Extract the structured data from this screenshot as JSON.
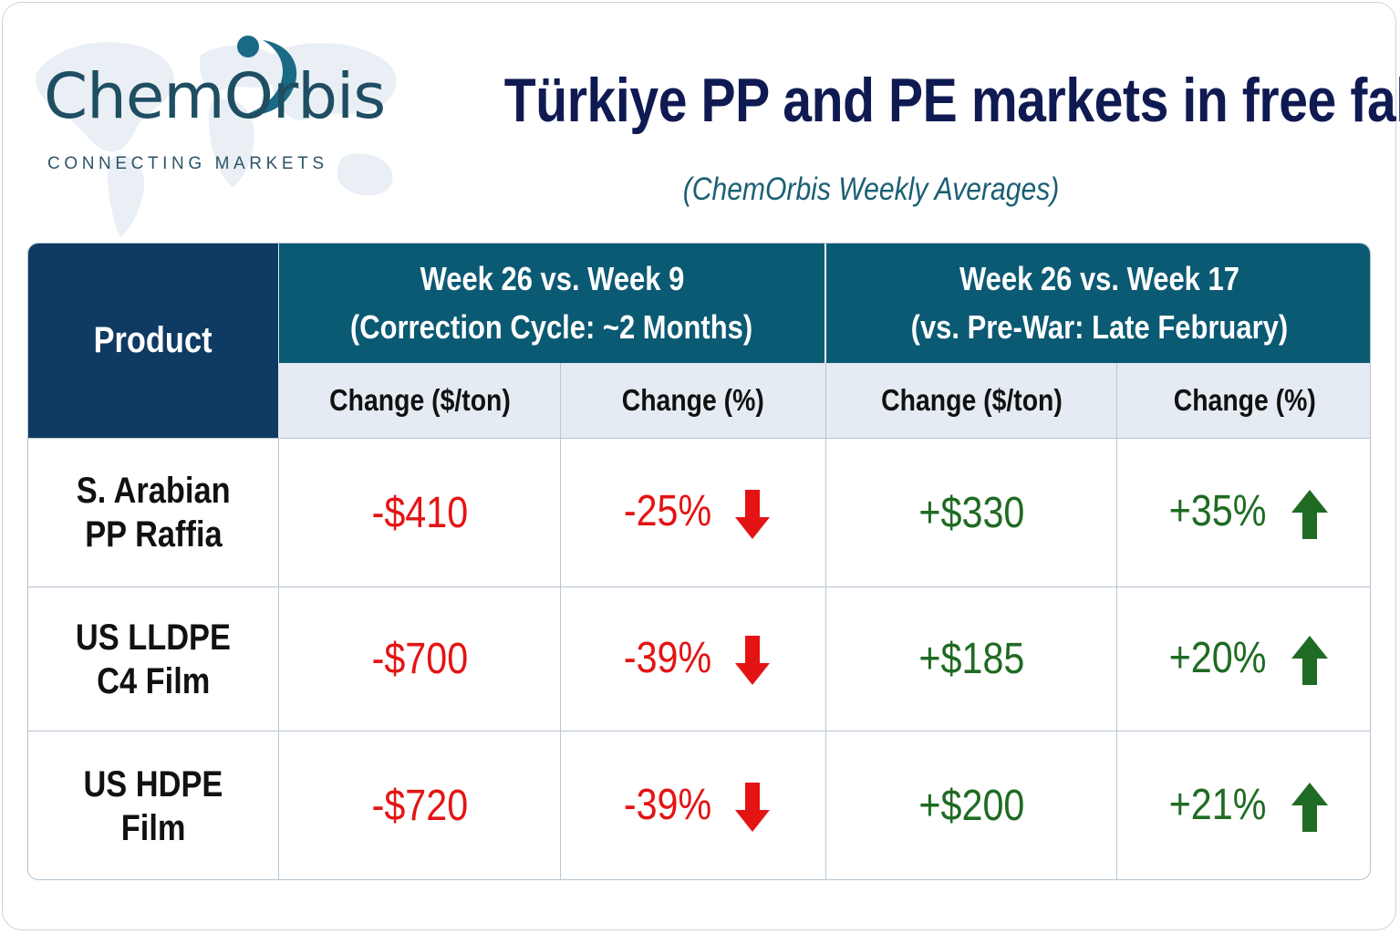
{
  "logo": {
    "name": "ChemOrbis",
    "tagline": "CONNECTING MARKETS",
    "colors": {
      "name": "#1f4e63",
      "swoosh": "#1a6a86"
    }
  },
  "title": "Türkiye PP and PE markets in free fall",
  "subtitle": "(ChemOrbis Weekly Averages)",
  "chart_data": {
    "type": "table",
    "title": "Türkiye PP and PE markets in free fall",
    "subtitle": "(ChemOrbis Weekly Averages)",
    "product_header": "Product",
    "groups": [
      {
        "line1": "Week 26 vs. Week 9",
        "line2": "(Correction Cycle: ~2 Months)"
      },
      {
        "line1": "Week 26 vs. Week 17",
        "line2": "(vs. Pre-War: Late February)"
      }
    ],
    "subheaders": [
      "Change ($/ton)",
      "Change (%)",
      "Change ($/ton)",
      "Change (%)"
    ],
    "rows": [
      {
        "product_line1": "S. Arabian",
        "product_line2": "PP Raffia",
        "values": [
          "-$410",
          "-25%",
          "+$330",
          "+35%"
        ]
      },
      {
        "product_line1": "US LLDPE",
        "product_line2": "C4 Film",
        "values": [
          "-$700",
          "-39%",
          "+$185",
          "+20%"
        ]
      },
      {
        "product_line1": "US HDPE",
        "product_line2": "Film",
        "values": [
          "-$720",
          "-39%",
          "+$200",
          "+21%"
        ]
      }
    ],
    "colors": {
      "negative": "#e41414",
      "positive": "#1f6b23",
      "header_product": "#0f3a63",
      "header_group": "#0b5a73",
      "subheader": "#e4ebf2",
      "title": "#101a52"
    },
    "icons": {
      "down": "down-arrow-icon",
      "up": "up-arrow-icon"
    }
  }
}
